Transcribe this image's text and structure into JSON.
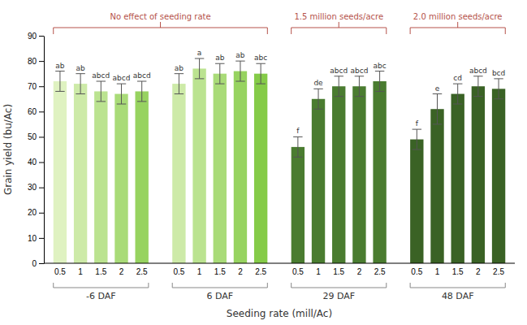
{
  "chart_data": {
    "type": "bar",
    "xlabel": "Seeding rate (mill/Ac)",
    "ylabel": "Grain yield (bu/Ac)",
    "categories": [
      "0.5",
      "1",
      "1.5",
      "2",
      "2.5"
    ],
    "series": [
      {
        "name": "-6 DAF",
        "colors": [
          "#dff2c1",
          "#cdeaa8",
          "#bbe390",
          "#a9db78",
          "#97d360"
        ],
        "values": [
          72,
          71,
          68,
          67,
          68
        ],
        "errors": [
          4,
          4,
          4,
          4,
          4
        ],
        "annotations": [
          "ab",
          "ab",
          "abcd",
          "abcd",
          "abcd"
        ]
      },
      {
        "name": "6 DAF",
        "colors": [
          "#cdeaa8",
          "#bbe390",
          "#a9db78",
          "#97d360",
          "#85cb48"
        ],
        "values": [
          71,
          77,
          75,
          76,
          75
        ],
        "errors": [
          4,
          4,
          4,
          4,
          4
        ],
        "annotations": [
          "ab",
          "a",
          "ab",
          "ab",
          "abc"
        ]
      },
      {
        "name": "29 DAF",
        "colors": [
          "#4a7c30",
          "#4a7c30",
          "#4a7c30",
          "#4a7c30",
          "#4a7c30"
        ],
        "values": [
          46,
          65,
          70,
          70,
          72
        ],
        "errors": [
          4,
          4,
          4,
          4,
          4
        ],
        "annotations": [
          "f",
          "de",
          "abcd",
          "abcd",
          "abc"
        ]
      },
      {
        "name": "48 DAF",
        "colors": [
          "#3a6225",
          "#3a6225",
          "#3a6225",
          "#3a6225",
          "#3a6225"
        ],
        "values": [
          49,
          61,
          67,
          70,
          69
        ],
        "errors": [
          4,
          6,
          4,
          4,
          4
        ],
        "annotations": [
          "f",
          "e",
          "cd",
          "abcd",
          "bcd"
        ]
      }
    ],
    "annotations": [
      {
        "text": "No effect of seeding rate",
        "series": [
          "-6 DAF",
          "6 DAF"
        ],
        "color": "#b5524a"
      },
      {
        "text": "1.5 million seeds/acre",
        "series": [
          "29 DAF"
        ],
        "color": "#b5524a"
      },
      {
        "text": "2.0 million seeds/acre",
        "series": [
          "48 DAF"
        ],
        "color": "#b5524a"
      }
    ],
    "ylim": [
      0,
      90
    ],
    "yticks": [
      0,
      10,
      20,
      30,
      40,
      50,
      60,
      70,
      80,
      90
    ],
    "grid": false
  }
}
